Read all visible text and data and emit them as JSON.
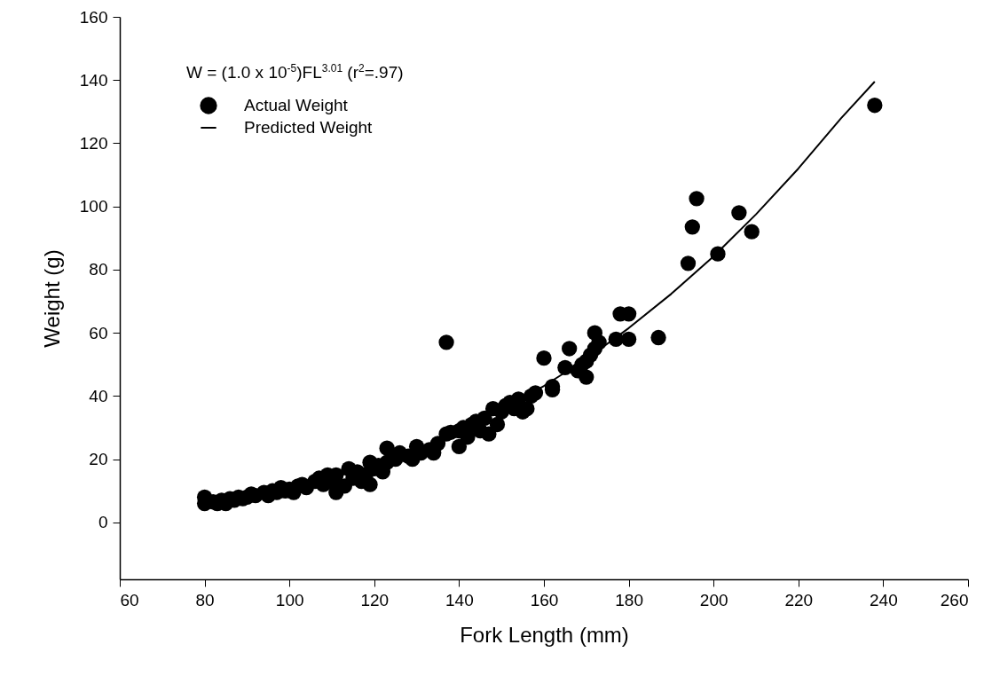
{
  "chart_data": {
    "type": "scatter",
    "xlabel": "Fork Length (mm)",
    "ylabel": "Weight (g)",
    "annotations": [
      "W = (1.0 x 10$^{-5}$)FL$^{3.01}$ (r$^{2}$=.97)"
    ],
    "xlim": [
      60,
      260
    ],
    "xticks": [
      60,
      80,
      100,
      120,
      140,
      160,
      180,
      200,
      220,
      240,
      260
    ],
    "ylim": [
      -18,
      160
    ],
    "yticks": [
      0,
      20,
      40,
      60,
      80,
      100,
      120,
      140,
      160
    ],
    "legend": "top left",
    "grid": false,
    "series": [
      {
        "name": "Actual Weight",
        "color": "#000000",
        "marker": "circle",
        "x": [
          80,
          80,
          82,
          83,
          84,
          85,
          86,
          87,
          88,
          89,
          90,
          91,
          92,
          94,
          95,
          96,
          97,
          98,
          99,
          100,
          101,
          102,
          103,
          104,
          106,
          107,
          108,
          109,
          110,
          111,
          111,
          113,
          114,
          115,
          116,
          117,
          118,
          119,
          119,
          120,
          121,
          122,
          123,
          123,
          125,
          126,
          128,
          129,
          130,
          131,
          133,
          134,
          135,
          137,
          138,
          140,
          140,
          141,
          142,
          143,
          144,
          145,
          146,
          147,
          148,
          149,
          150,
          151,
          152,
          153,
          154,
          155,
          156,
          157,
          158,
          137,
          160,
          162,
          162,
          165,
          166,
          168,
          169,
          170,
          170,
          171,
          172,
          172,
          173,
          177,
          178,
          180,
          180,
          187,
          194,
          195,
          196,
          201,
          206,
          209,
          238
        ],
        "values": [
          6,
          8,
          6.5,
          6,
          7,
          6,
          7.5,
          7,
          8,
          7.5,
          8,
          9,
          8.5,
          9.5,
          8.5,
          10,
          9.5,
          11,
          10,
          10.5,
          9.5,
          11.5,
          12,
          11,
          13,
          14,
          12,
          15,
          13,
          15,
          9.5,
          11.5,
          17,
          14,
          16,
          13,
          15,
          19,
          12,
          17,
          18,
          16,
          19,
          23.5,
          20,
          22,
          21,
          20,
          24,
          22,
          23,
          22,
          25,
          28,
          28.5,
          29,
          24,
          30,
          27,
          31,
          32,
          29,
          33,
          28,
          36,
          31,
          35,
          37,
          38,
          36,
          39,
          35,
          36,
          40,
          41,
          57,
          52,
          42,
          43,
          49,
          55,
          48,
          50,
          46,
          51,
          53,
          55,
          60,
          57,
          58,
          66,
          66,
          58,
          58.5,
          82,
          93.5,
          102.5,
          85,
          98,
          92,
          132
        ]
      },
      {
        "name": "Predicted Weight",
        "color": "#000000",
        "type": "line",
        "marker": "none",
        "x": [
          80,
          90,
          100,
          110,
          120,
          130,
          140,
          150,
          160,
          170,
          180,
          190,
          200,
          210,
          220,
          230,
          238
        ],
        "values": [
          5.4,
          7.6,
          10.5,
          14,
          18.2,
          23.1,
          28.9,
          35.5,
          43.2,
          51.7,
          61.5,
          72.3,
          84.2,
          97.5,
          112,
          127.8,
          139.5
        ]
      }
    ]
  }
}
